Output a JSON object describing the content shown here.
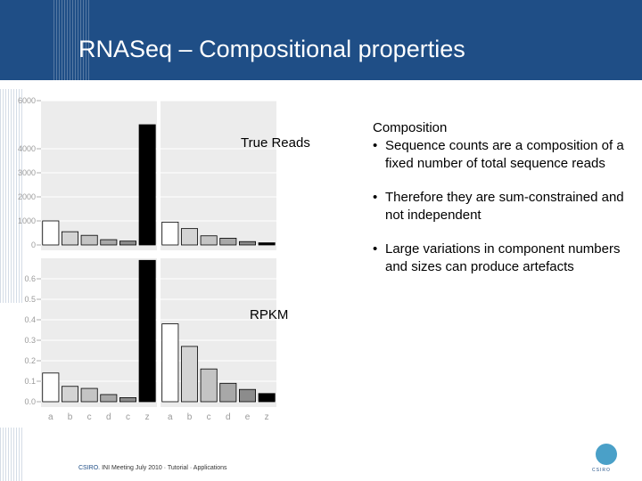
{
  "slide": {
    "title": "RNASeq – Compositional properties",
    "footer_brand": "CSIRO.",
    "footer_text": "INI Meeting July 2010 · Tutorial · Applications",
    "logo_label": "CSIRO"
  },
  "bullets": {
    "heading": "Composition",
    "items": [
      "Sequence counts are a composition of a fixed number of total sequence reads",
      "Therefore they are sum-constrained and not independent",
      "Large variations in component numbers and sizes can produce artefacts"
    ]
  },
  "chart_data": [
    {
      "type": "bar",
      "panel_label": "True Reads",
      "ylim": [
        0,
        6000
      ],
      "yticks": [
        "6000",
        "4000",
        "3000",
        "2000",
        "1000",
        "0"
      ],
      "ytick_values": [
        6000,
        4000,
        3000,
        2000,
        1000,
        0
      ],
      "facets": [
        {
          "categories": [
            "a",
            "b",
            "c",
            "d",
            "c",
            "z"
          ],
          "values": [
            1000,
            550,
            400,
            220,
            160,
            5000
          ]
        },
        {
          "categories": [
            "a",
            "b",
            "c",
            "d",
            "e",
            "z"
          ],
          "values": [
            950,
            680,
            380,
            280,
            140,
            90
          ]
        }
      ]
    },
    {
      "type": "bar",
      "panel_label": "RPKM",
      "ylim": [
        0,
        0.7
      ],
      "yticks": [
        "0.6",
        "0.5",
        "0.4",
        "0.3",
        "0.2",
        "0.1",
        "0.0"
      ],
      "ytick_values": [
        0.6,
        0.5,
        0.4,
        0.3,
        0.2,
        0.1,
        0.0
      ],
      "facets": [
        {
          "categories": [
            "a",
            "b",
            "c",
            "d",
            "c",
            "z"
          ],
          "values": [
            0.14,
            0.075,
            0.065,
            0.035,
            0.02,
            0.69
          ]
        },
        {
          "categories": [
            "a",
            "b",
            "c",
            "d",
            "e",
            "z"
          ],
          "values": [
            0.38,
            0.27,
            0.16,
            0.09,
            0.06,
            0.04
          ]
        }
      ],
      "xlabels": [
        [
          "a",
          "b",
          "c",
          "d",
          "c",
          "z"
        ],
        [
          "a",
          "b",
          "c",
          "d",
          "e",
          "z"
        ]
      ]
    }
  ],
  "colors": {
    "header": "#1f4e86",
    "panel_bg": "#ececec",
    "bar_fills": [
      "#ffffff",
      "#d4d4d4",
      "#c4c4c4",
      "#a8a8a8",
      "#8c8c8c",
      "#000000"
    ],
    "text_muted": "#9a9a9a"
  }
}
